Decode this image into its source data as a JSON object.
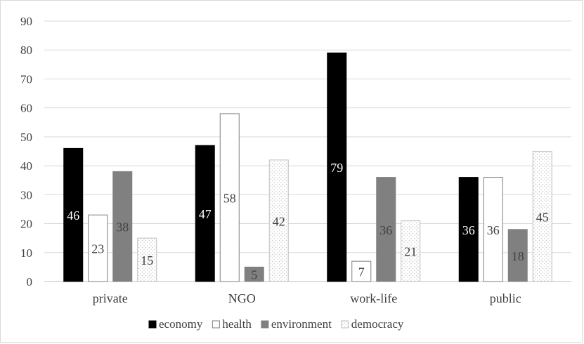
{
  "chart_data": {
    "type": "bar",
    "categories": [
      "private",
      "NGO",
      "work-life",
      "public"
    ],
    "series": [
      {
        "name": "economy",
        "values": [
          46,
          47,
          79,
          36
        ],
        "style": "solid-black"
      },
      {
        "name": "health",
        "values": [
          23,
          58,
          7,
          36
        ],
        "style": "white-outline"
      },
      {
        "name": "environment",
        "values": [
          38,
          5,
          36,
          18
        ],
        "style": "solid-gray"
      },
      {
        "name": "democracy",
        "values": [
          15,
          42,
          21,
          45
        ],
        "style": "dotted-pattern"
      }
    ],
    "ylim": [
      0,
      90
    ],
    "yticks": [
      0,
      10,
      20,
      30,
      40,
      50,
      60,
      70,
      80,
      90
    ],
    "grid": true,
    "legend_position": "bottom",
    "data_labels": true,
    "title": "",
    "xlabel": "",
    "ylabel": ""
  },
  "colors": {
    "economy": "#000000",
    "health": "#ffffff",
    "environment": "#808080",
    "democracy_dot": "#bfbfbf",
    "grid": "#d9d9d9",
    "axis": "#bfbfbf",
    "text": "#404040"
  }
}
